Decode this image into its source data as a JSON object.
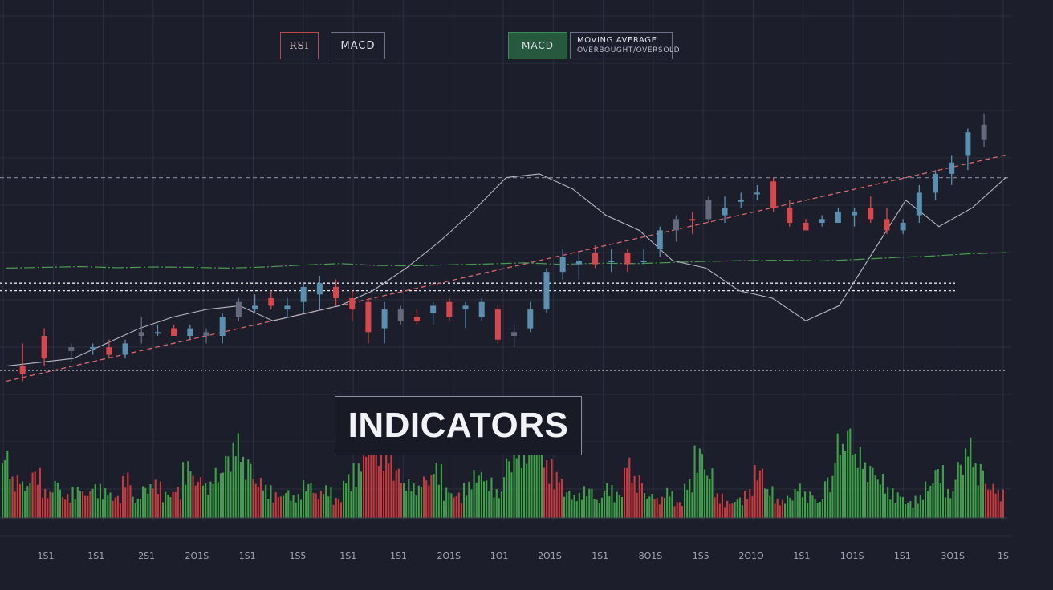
{
  "toolbar": {
    "rsi_label": "RSI",
    "macd_label": "MACD",
    "macd_active_label": "MACD",
    "ma_label": "MOVING AVERAGE",
    "ma_sublabel": "OVERBOUGHT/OVERSOLD"
  },
  "badge": {
    "label": "INDICATORS"
  },
  "colors": {
    "background": "#1c1e2b",
    "grid": "#2c2f3e",
    "up_candle": "#5a8fb0",
    "down_candle": "#d9474d",
    "neutral_candle": "#646a7c",
    "volume_up": "#3fa04a",
    "volume_down": "#c93a3e",
    "trendline": "#d8676c",
    "ma_line": "#4c9a52",
    "signal_line": "#b4b8c4"
  },
  "chart_data": {
    "type": "candlestick",
    "title": "",
    "xlabel": "",
    "ylabel": "",
    "grid": true,
    "x_tick_labels": [
      "1S1",
      "1S1",
      "2S1",
      "2O1S",
      "1S1",
      "1S5",
      "1S1",
      "1S1",
      "2O1S",
      "1O1",
      "2O1S",
      "1S1",
      "8O1S",
      "1S5",
      "2O1O",
      "1S1",
      "1O1S",
      "1S1",
      "3O1S",
      "1S"
    ],
    "ylim": [
      0,
      100
    ],
    "candles": [
      {
        "t": 3,
        "o": 22,
        "h": 28,
        "l": 18,
        "c": 20,
        "dir": "down"
      },
      {
        "t": 7,
        "o": 30,
        "h": 32,
        "l": 22,
        "c": 24,
        "dir": "down"
      },
      {
        "t": 12,
        "o": 26,
        "h": 28,
        "l": 23,
        "c": 27,
        "dir": "neutral"
      },
      {
        "t": 16,
        "o": 27,
        "h": 28,
        "l": 25,
        "c": 27,
        "dir": "up"
      },
      {
        "t": 19,
        "o": 27,
        "h": 29,
        "l": 24,
        "c": 25,
        "dir": "down"
      },
      {
        "t": 22,
        "o": 25,
        "h": 29,
        "l": 24,
        "c": 28,
        "dir": "up"
      },
      {
        "t": 25,
        "o": 30,
        "h": 35,
        "l": 28,
        "c": 31,
        "dir": "neutral"
      },
      {
        "t": 28,
        "o": 31,
        "h": 33,
        "l": 30,
        "c": 31,
        "dir": "up"
      },
      {
        "t": 31,
        "o": 32,
        "h": 33,
        "l": 30,
        "c": 30,
        "dir": "down"
      },
      {
        "t": 34,
        "o": 32,
        "h": 33,
        "l": 29,
        "c": 30,
        "dir": "up"
      },
      {
        "t": 37,
        "o": 31,
        "h": 32,
        "l": 28,
        "c": 30,
        "dir": "neutral"
      },
      {
        "t": 40,
        "o": 30,
        "h": 36,
        "l": 28,
        "c": 35,
        "dir": "up"
      },
      {
        "t": 43,
        "o": 35,
        "h": 40,
        "l": 34,
        "c": 39,
        "dir": "neutral"
      },
      {
        "t": 46,
        "o": 38,
        "h": 41,
        "l": 36,
        "c": 37,
        "dir": "up"
      },
      {
        "t": 49,
        "o": 40,
        "h": 42,
        "l": 37,
        "c": 38,
        "dir": "down"
      },
      {
        "t": 52,
        "o": 37,
        "h": 40,
        "l": 35,
        "c": 38,
        "dir": "up"
      },
      {
        "t": 55,
        "o": 43,
        "h": 44,
        "l": 36,
        "c": 39,
        "dir": "up"
      },
      {
        "t": 58,
        "o": 41,
        "h": 46,
        "l": 37,
        "c": 44,
        "dir": "up"
      },
      {
        "t": 61,
        "o": 43,
        "h": 45,
        "l": 38,
        "c": 40,
        "dir": "down"
      },
      {
        "t": 64,
        "o": 40,
        "h": 42,
        "l": 34,
        "c": 37,
        "dir": "down"
      },
      {
        "t": 67,
        "o": 39,
        "h": 40,
        "l": 28,
        "c": 31,
        "dir": "down"
      },
      {
        "t": 70,
        "o": 32,
        "h": 39,
        "l": 28,
        "c": 37,
        "dir": "up"
      },
      {
        "t": 73,
        "o": 37,
        "h": 38,
        "l": 33,
        "c": 34,
        "dir": "neutral"
      },
      {
        "t": 76,
        "o": 35,
        "h": 37,
        "l": 33,
        "c": 34,
        "dir": "down"
      },
      {
        "t": 79,
        "o": 36,
        "h": 39,
        "l": 33,
        "c": 38,
        "dir": "up"
      },
      {
        "t": 82,
        "o": 39,
        "h": 40,
        "l": 34,
        "c": 35,
        "dir": "down"
      },
      {
        "t": 85,
        "o": 37,
        "h": 39,
        "l": 32,
        "c": 38,
        "dir": "up"
      },
      {
        "t": 88,
        "o": 39,
        "h": 40,
        "l": 34,
        "c": 35,
        "dir": "up"
      },
      {
        "t": 91,
        "o": 37,
        "h": 38,
        "l": 28,
        "c": 29,
        "dir": "down"
      },
      {
        "t": 94,
        "o": 30,
        "h": 33,
        "l": 27,
        "c": 31,
        "dir": "neutral"
      },
      {
        "t": 97,
        "o": 32,
        "h": 39,
        "l": 31,
        "c": 37,
        "dir": "up"
      },
      {
        "t": 100,
        "o": 37,
        "h": 48,
        "l": 36,
        "c": 47,
        "dir": "up"
      },
      {
        "t": 103,
        "o": 47,
        "h": 53,
        "l": 45,
        "c": 51,
        "dir": "up"
      },
      {
        "t": 106,
        "o": 50,
        "h": 52,
        "l": 45,
        "c": 49,
        "dir": "up"
      },
      {
        "t": 109,
        "o": 52,
        "h": 54,
        "l": 48,
        "c": 49,
        "dir": "down"
      },
      {
        "t": 112,
        "o": 50,
        "h": 53,
        "l": 47,
        "c": 50,
        "dir": "up"
      },
      {
        "t": 115,
        "o": 52,
        "h": 53,
        "l": 47,
        "c": 49,
        "dir": "down"
      },
      {
        "t": 118,
        "o": 50,
        "h": 53,
        "l": 49,
        "c": 50,
        "dir": "up"
      },
      {
        "t": 121,
        "o": 53,
        "h": 59,
        "l": 51,
        "c": 58,
        "dir": "up"
      },
      {
        "t": 124,
        "o": 58,
        "h": 62,
        "l": 55,
        "c": 61,
        "dir": "neutral"
      },
      {
        "t": 127,
        "o": 61,
        "h": 63,
        "l": 57,
        "c": 61,
        "dir": "down"
      },
      {
        "t": 130,
        "o": 61,
        "h": 67,
        "l": 60,
        "c": 66,
        "dir": "neutral"
      },
      {
        "t": 133,
        "o": 62,
        "h": 67,
        "l": 60,
        "c": 64,
        "dir": "up"
      },
      {
        "t": 136,
        "o": 66,
        "h": 68,
        "l": 64,
        "c": 66,
        "dir": "up"
      },
      {
        "t": 139,
        "o": 68,
        "h": 70,
        "l": 66,
        "c": 68,
        "dir": "up"
      },
      {
        "t": 142,
        "o": 71,
        "h": 72,
        "l": 63,
        "c": 64,
        "dir": "down"
      },
      {
        "t": 145,
        "o": 64,
        "h": 66,
        "l": 59,
        "c": 60,
        "dir": "down"
      },
      {
        "t": 148,
        "o": 60,
        "h": 61,
        "l": 58,
        "c": 58,
        "dir": "down"
      },
      {
        "t": 151,
        "o": 60,
        "h": 62,
        "l": 59,
        "c": 61,
        "dir": "up"
      },
      {
        "t": 154,
        "o": 60,
        "h": 64,
        "l": 60,
        "c": 63,
        "dir": "up"
      },
      {
        "t": 157,
        "o": 62,
        "h": 64,
        "l": 59,
        "c": 63,
        "dir": "up"
      },
      {
        "t": 160,
        "o": 64,
        "h": 67,
        "l": 60,
        "c": 61,
        "dir": "down"
      },
      {
        "t": 163,
        "o": 61,
        "h": 64,
        "l": 57,
        "c": 58,
        "dir": "down"
      },
      {
        "t": 166,
        "o": 58,
        "h": 61,
        "l": 57,
        "c": 60,
        "dir": "up"
      },
      {
        "t": 169,
        "o": 62,
        "h": 70,
        "l": 60,
        "c": 68,
        "dir": "up"
      },
      {
        "t": 172,
        "o": 68,
        "h": 74,
        "l": 66,
        "c": 73,
        "dir": "up"
      },
      {
        "t": 175,
        "o": 73,
        "h": 78,
        "l": 70,
        "c": 76,
        "dir": "up"
      },
      {
        "t": 178,
        "o": 78,
        "h": 85,
        "l": 74,
        "c": 84,
        "dir": "up"
      },
      {
        "t": 181,
        "o": 86,
        "h": 89,
        "l": 80,
        "c": 82,
        "dir": "neutral"
      }
    ],
    "moving_average": [
      48,
      48.2,
      48.4,
      48.1,
      48.3,
      48.2,
      48.0,
      48.3,
      48.8,
      49.2,
      48.7,
      48.6,
      48.9,
      49.1,
      49.4,
      49.0,
      49.3,
      49.2,
      49.5,
      49.8,
      50.0,
      50.1,
      49.9,
      50.3,
      50.8,
      51.2,
      51.8,
      52.1
    ],
    "signal_line": [
      22,
      23,
      24,
      28,
      32,
      35,
      37,
      38,
      34,
      36,
      38,
      42,
      48,
      55,
      63,
      72,
      73,
      69,
      62,
      58,
      50,
      48,
      42,
      40,
      34,
      38,
      52,
      66,
      59,
      64,
      72
    ],
    "trendline": {
      "start": [
        0,
        18
      ],
      "end": [
        185,
        78
      ]
    },
    "resistance_level": 72,
    "support_band": [
      42,
      44
    ],
    "baseline_level": 20,
    "volume": {
      "max": 100,
      "bars": [
        {
          "v": 72,
          "dir": "up"
        },
        {
          "v": 45,
          "dir": "down"
        },
        {
          "v": 38,
          "dir": "up"
        },
        {
          "v": 52,
          "dir": "down"
        },
        {
          "v": 30,
          "dir": "down"
        },
        {
          "v": 41,
          "dir": "up"
        },
        {
          "v": 25,
          "dir": "down"
        },
        {
          "v": 33,
          "dir": "up"
        },
        {
          "v": 28,
          "dir": "down"
        },
        {
          "v": 36,
          "dir": "up"
        },
        {
          "v": 31,
          "dir": "up"
        },
        {
          "v": 24,
          "dir": "down"
        },
        {
          "v": 47,
          "dir": "down"
        },
        {
          "v": 22,
          "dir": "up"
        },
        {
          "v": 35,
          "dir": "up"
        },
        {
          "v": 40,
          "dir": "down"
        },
        {
          "v": 28,
          "dir": "up"
        },
        {
          "v": 33,
          "dir": "down"
        },
        {
          "v": 60,
          "dir": "up"
        },
        {
          "v": 44,
          "dir": "down"
        },
        {
          "v": 38,
          "dir": "up"
        },
        {
          "v": 52,
          "dir": "up"
        },
        {
          "v": 70,
          "dir": "up"
        },
        {
          "v": 88,
          "dir": "up"
        },
        {
          "v": 64,
          "dir": "up"
        },
        {
          "v": 42,
          "dir": "down"
        },
        {
          "v": 35,
          "dir": "up"
        },
        {
          "v": 27,
          "dir": "down"
        },
        {
          "v": 30,
          "dir": "up"
        },
        {
          "v": 25,
          "dir": "up"
        },
        {
          "v": 39,
          "dir": "up"
        },
        {
          "v": 28,
          "dir": "down"
        },
        {
          "v": 34,
          "dir": "up"
        },
        {
          "v": 22,
          "dir": "down"
        },
        {
          "v": 46,
          "dir": "up"
        },
        {
          "v": 58,
          "dir": "up"
        },
        {
          "v": 80,
          "dir": "down"
        },
        {
          "v": 90,
          "dir": "down"
        },
        {
          "v": 76,
          "dir": "down"
        },
        {
          "v": 55,
          "dir": "down"
        },
        {
          "v": 40,
          "dir": "up"
        },
        {
          "v": 36,
          "dir": "up"
        },
        {
          "v": 45,
          "dir": "down"
        },
        {
          "v": 58,
          "dir": "up"
        },
        {
          "v": 32,
          "dir": "up"
        },
        {
          "v": 27,
          "dir": "down"
        },
        {
          "v": 38,
          "dir": "up"
        },
        {
          "v": 50,
          "dir": "up"
        },
        {
          "v": 42,
          "dir": "up"
        },
        {
          "v": 30,
          "dir": "up"
        },
        {
          "v": 66,
          "dir": "up"
        },
        {
          "v": 82,
          "dir": "up"
        },
        {
          "v": 96,
          "dir": "up"
        },
        {
          "v": 98,
          "dir": "up"
        },
        {
          "v": 62,
          "dir": "down"
        },
        {
          "v": 48,
          "dir": "down"
        },
        {
          "v": 30,
          "dir": "up"
        },
        {
          "v": 26,
          "dir": "up"
        },
        {
          "v": 33,
          "dir": "up"
        },
        {
          "v": 21,
          "dir": "up"
        },
        {
          "v": 36,
          "dir": "up"
        },
        {
          "v": 28,
          "dir": "up"
        },
        {
          "v": 64,
          "dir": "down"
        },
        {
          "v": 45,
          "dir": "down"
        },
        {
          "v": 26,
          "dir": "up"
        },
        {
          "v": 22,
          "dir": "down"
        },
        {
          "v": 31,
          "dir": "up"
        },
        {
          "v": 18,
          "dir": "down"
        },
        {
          "v": 40,
          "dir": "up"
        },
        {
          "v": 76,
          "dir": "up"
        },
        {
          "v": 52,
          "dir": "up"
        },
        {
          "v": 26,
          "dir": "down"
        },
        {
          "v": 18,
          "dir": "down"
        },
        {
          "v": 22,
          "dir": "up"
        },
        {
          "v": 30,
          "dir": "down"
        },
        {
          "v": 55,
          "dir": "down"
        },
        {
          "v": 33,
          "dir": "up"
        },
        {
          "v": 20,
          "dir": "down"
        },
        {
          "v": 24,
          "dir": "up"
        },
        {
          "v": 36,
          "dir": "up"
        },
        {
          "v": 28,
          "dir": "up"
        },
        {
          "v": 20,
          "dir": "up"
        },
        {
          "v": 44,
          "dir": "up"
        },
        {
          "v": 88,
          "dir": "up"
        },
        {
          "v": 100,
          "dir": "up"
        },
        {
          "v": 74,
          "dir": "up"
        },
        {
          "v": 58,
          "dir": "up"
        },
        {
          "v": 46,
          "dir": "up"
        },
        {
          "v": 32,
          "dir": "up"
        },
        {
          "v": 27,
          "dir": "up"
        },
        {
          "v": 18,
          "dir": "up"
        },
        {
          "v": 24,
          "dir": "up"
        },
        {
          "v": 38,
          "dir": "up"
        },
        {
          "v": 55,
          "dir": "up"
        },
        {
          "v": 30,
          "dir": "up"
        },
        {
          "v": 62,
          "dir": "up"
        },
        {
          "v": 84,
          "dir": "up"
        },
        {
          "v": 58,
          "dir": "up"
        },
        {
          "v": 36,
          "dir": "down"
        },
        {
          "v": 30,
          "dir": "down"
        }
      ]
    }
  }
}
